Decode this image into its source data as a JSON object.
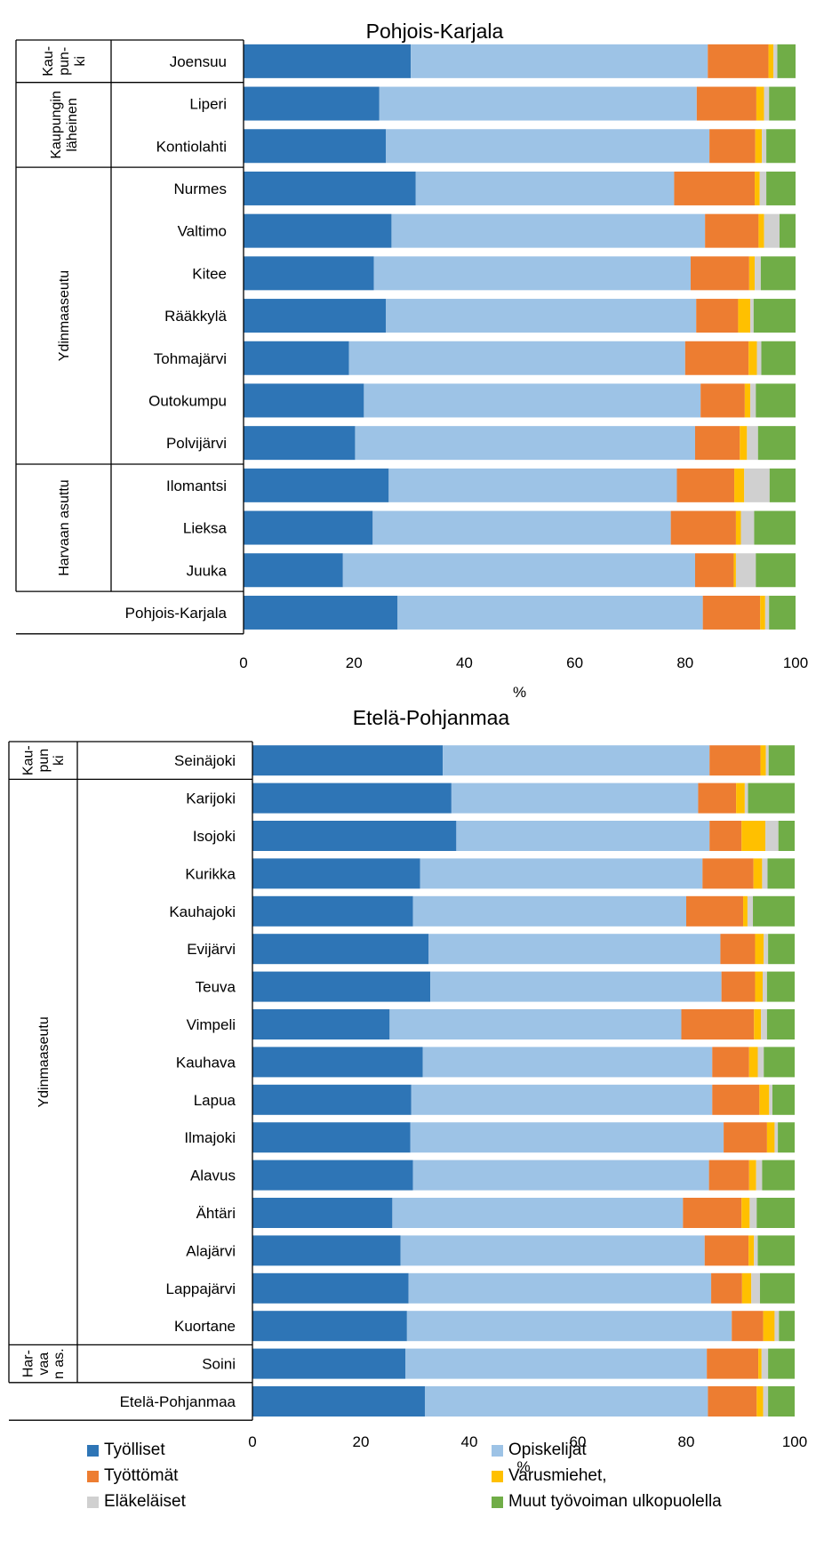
{
  "chart_data": [
    {
      "type": "bar",
      "orientation": "horizontal",
      "stacked": true,
      "title": "Pohjois-Karjala",
      "xlabel": "%",
      "xlim": [
        0,
        100
      ],
      "xticks": [
        "0",
        "20",
        "40",
        "60",
        "80",
        "100"
      ],
      "groups": [
        {
          "label": "Kau-\npun-\nki",
          "categories": [
            "Joensuu"
          ]
        },
        {
          "label": "Kaupungin\nläheinen",
          "categories": [
            "Liperi",
            "Kontiolahti"
          ]
        },
        {
          "label": "Ydinmaaseutu",
          "categories": [
            "Nurmes",
            "Valtimo",
            "Kitee",
            "Rääkkylä",
            "Tohmajärvi",
            "Outokumpu",
            "Polvijärvi"
          ]
        },
        {
          "label": "Harvaan asuttu",
          "categories": [
            "Ilomantsi",
            "Lieksa",
            "Juuka"
          ]
        },
        {
          "label": "",
          "categories": [
            "Pohjois-Karjala"
          ]
        }
      ],
      "categories": [
        "Joensuu",
        "Liperi",
        "Kontiolahti",
        "Nurmes",
        "Valtimo",
        "Kitee",
        "Rääkkylä",
        "Tohmajärvi",
        "Outokumpu",
        "Polvijärvi",
        "Ilomantsi",
        "Lieksa",
        "Juuka",
        "Pohjois-Karjala"
      ],
      "series": [
        {
          "name": "Työlliset",
          "values": [
            30.3,
            24.6,
            25.8,
            31.2,
            26.8,
            23.6,
            25.8,
            19.1,
            21.8,
            20.2,
            26.3,
            23.4,
            18.0,
            27.9
          ]
        },
        {
          "name": "Opiskelijat",
          "values": [
            53.8,
            57.5,
            58.6,
            46.8,
            56.8,
            57.4,
            56.2,
            60.9,
            61.0,
            61.6,
            52.2,
            54.0,
            63.8,
            55.3
          ]
        },
        {
          "name": "Työttömät",
          "values": [
            11.0,
            10.8,
            8.3,
            14.6,
            9.7,
            10.6,
            7.6,
            11.5,
            8.0,
            8.1,
            10.4,
            11.8,
            7.0,
            10.4
          ]
        },
        {
          "name": "Varusmiehet,",
          "values": [
            0.9,
            1.4,
            1.2,
            0.9,
            1.0,
            1.0,
            2.2,
            1.5,
            1.0,
            1.3,
            1.8,
            0.9,
            0.4,
            0.9
          ]
        },
        {
          "name": "Eläkeläiset",
          "values": [
            0.7,
            0.9,
            0.8,
            1.2,
            2.8,
            1.1,
            0.6,
            0.8,
            1.0,
            2.0,
            4.6,
            2.4,
            3.6,
            0.7
          ]
        },
        {
          "name": "Muut työvoiman ulkopuolella",
          "values": [
            3.3,
            4.8,
            5.3,
            5.3,
            2.9,
            6.3,
            7.6,
            6.2,
            7.2,
            6.8,
            4.7,
            7.5,
            7.2,
            4.8
          ]
        }
      ]
    },
    {
      "type": "bar",
      "orientation": "horizontal",
      "stacked": true,
      "title": "Etelä-Pohjanmaa",
      "xlabel": "%",
      "xlim": [
        0,
        100
      ],
      "xticks": [
        "0",
        "20",
        "40",
        "60",
        "80",
        "100"
      ],
      "groups": [
        {
          "label": "Kau-\npun\nki",
          "categories": [
            "Seinäjoki"
          ]
        },
        {
          "label": "Ydinmaaseutu",
          "categories": [
            "Karijoki",
            "Isojoki",
            "Kurikka",
            "Kauhajoki",
            "Evijärvi",
            "Teuva",
            "Vimpeli",
            "Kauhava",
            "Lapua",
            "Ilmajoki",
            "Alavus",
            "Ähtäri",
            "Alajärvi",
            "Lappajärvi",
            "Kuortane"
          ]
        },
        {
          "label": "Har-\nvaa\nn as.",
          "categories": [
            "Soini"
          ]
        },
        {
          "label": "",
          "categories": [
            "Etelä-Pohjanmaa"
          ]
        }
      ],
      "categories": [
        "Seinäjoki",
        "Karijoki",
        "Isojoki",
        "Kurikka",
        "Kauhajoki",
        "Evijärvi",
        "Teuva",
        "Vimpeli",
        "Kauhava",
        "Lapua",
        "Ilmajoki",
        "Alavus",
        "Ähtäri",
        "Alajärvi",
        "Lappajärvi",
        "Kuortane",
        "Soini",
        "Etelä-Pohjanmaa"
      ],
      "series": [
        {
          "name": "Työlliset",
          "values": [
            35.1,
            36.7,
            37.6,
            30.9,
            29.6,
            32.5,
            32.8,
            25.3,
            31.4,
            29.3,
            29.1,
            29.6,
            25.8,
            27.3,
            28.8,
            28.5,
            28.2,
            31.8
          ]
        },
        {
          "name": "Opiskelijat",
          "values": [
            49.2,
            45.5,
            46.7,
            52.1,
            50.4,
            53.8,
            53.7,
            53.8,
            53.4,
            55.5,
            57.8,
            54.6,
            53.6,
            56.1,
            55.8,
            59.9,
            55.6,
            52.2
          ]
        },
        {
          "name": "Työttömät",
          "values": [
            9.4,
            7.0,
            5.9,
            9.4,
            10.5,
            6.4,
            6.2,
            13.4,
            6.8,
            8.7,
            8.0,
            7.4,
            10.8,
            8.1,
            5.7,
            5.8,
            9.5,
            9.0
          ]
        },
        {
          "name": "Varusmiehet,",
          "values": [
            1.0,
            1.6,
            4.4,
            1.6,
            0.8,
            1.6,
            1.4,
            1.3,
            1.6,
            1.8,
            1.4,
            1.3,
            1.5,
            1.0,
            1.7,
            2.1,
            0.6,
            1.2
          ]
        },
        {
          "name": "Eläkeläiset",
          "values": [
            0.5,
            0.6,
            2.4,
            1.0,
            1.0,
            0.8,
            0.8,
            1.1,
            1.1,
            0.6,
            0.6,
            1.1,
            1.3,
            0.7,
            1.6,
            0.8,
            1.2,
            0.9
          ]
        },
        {
          "name": "Muut työvoiman ulkopuolella",
          "values": [
            4.8,
            8.6,
            3.0,
            5.0,
            7.7,
            4.9,
            5.1,
            5.1,
            5.7,
            4.1,
            3.1,
            6.0,
            7.0,
            6.8,
            6.4,
            2.9,
            4.9,
            4.9
          ]
        }
      ]
    }
  ],
  "legend": [
    {
      "name": "Työlliset",
      "color": "#2e75b6"
    },
    {
      "name": "Opiskelijat",
      "color": "#9dc3e6"
    },
    {
      "name": "Työttömät",
      "color": "#ed7d31"
    },
    {
      "name": "Varusmiehet,",
      "color": "#ffc000"
    },
    {
      "name": "Eläkeläiset",
      "color": "#d0d0d0"
    },
    {
      "name": "Muut työvoiman ulkopuolella",
      "color": "#70ad47"
    }
  ],
  "colors": [
    "#2e75b6",
    "#9dc3e6",
    "#ed7d31",
    "#ffc000",
    "#d0d0d0",
    "#70ad47"
  ]
}
